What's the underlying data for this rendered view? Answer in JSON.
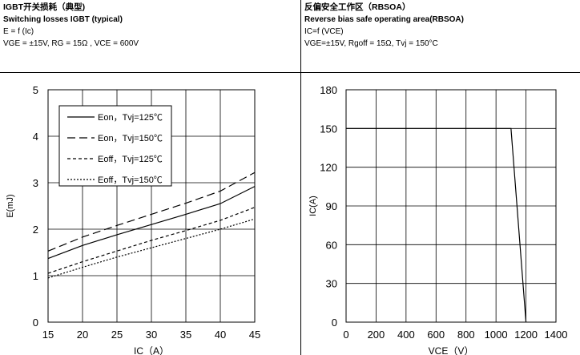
{
  "left": {
    "title": "IGBT开关损耗（典型)",
    "subtitle": "Switching losses IGBT (typical)",
    "formula": "E = f (Ic)",
    "conditions": "VGE = ±15V, RG = 15Ω , VCE = 600V"
  },
  "right": {
    "title": "反偏安全工作区（RBSOA）",
    "subtitle": "Reverse bias safe operating area(RBSOA)",
    "formula": "IC=f (VCE)",
    "conditions": "VGE=±15V, Rgoff = 15Ω, Tvj = 150°C"
  },
  "chart_data": [
    {
      "type": "line",
      "title": "Switching losses IGBT (typical)",
      "xlabel": "IC（A）",
      "ylabel": "E(mJ)",
      "xlim": [
        15,
        45
      ],
      "ylim": [
        0,
        5
      ],
      "xticks": [
        15,
        20,
        25,
        30,
        35,
        40,
        45
      ],
      "yticks": [
        0,
        1,
        2,
        3,
        4,
        5
      ],
      "grid": true,
      "legend_position": "top-left",
      "series": [
        {
          "name": "Eon，Tvj=125℃",
          "style": "solid",
          "x": [
            15,
            20,
            25,
            30,
            35,
            40,
            45
          ],
          "y": [
            1.37,
            1.65,
            1.88,
            2.1,
            2.32,
            2.55,
            2.92
          ]
        },
        {
          "name": "Eon，Tvj=150℃",
          "style": "dash",
          "x": [
            15,
            20,
            25,
            30,
            35,
            40,
            45
          ],
          "y": [
            1.53,
            1.83,
            2.08,
            2.32,
            2.56,
            2.82,
            3.22
          ]
        },
        {
          "name": "Eoff，Tvj=125℃",
          "style": "shortdash",
          "x": [
            15,
            20,
            25,
            30,
            35,
            40,
            45
          ],
          "y": [
            1.05,
            1.3,
            1.53,
            1.76,
            1.97,
            2.19,
            2.47
          ]
        },
        {
          "name": "Eoff，Tvj=150℃",
          "style": "dot",
          "x": [
            15,
            20,
            25,
            30,
            35,
            40,
            45
          ],
          "y": [
            0.95,
            1.18,
            1.4,
            1.6,
            1.8,
            2.0,
            2.22
          ]
        }
      ]
    },
    {
      "type": "line",
      "title": "Reverse bias safe operating area(RBSOA)",
      "xlabel": "VCE（V）",
      "ylabel": "IC(A)",
      "xlim": [
        0,
        1400
      ],
      "ylim": [
        0,
        180
      ],
      "xticks": [
        0,
        200,
        400,
        600,
        800,
        1000,
        1200,
        1400
      ],
      "yticks": [
        0,
        30,
        60,
        90,
        120,
        150,
        180
      ],
      "grid": true,
      "series": [
        {
          "style": "solid",
          "x": [
            0,
            1100,
            1200
          ],
          "y": [
            150,
            150,
            0
          ]
        }
      ]
    }
  ]
}
